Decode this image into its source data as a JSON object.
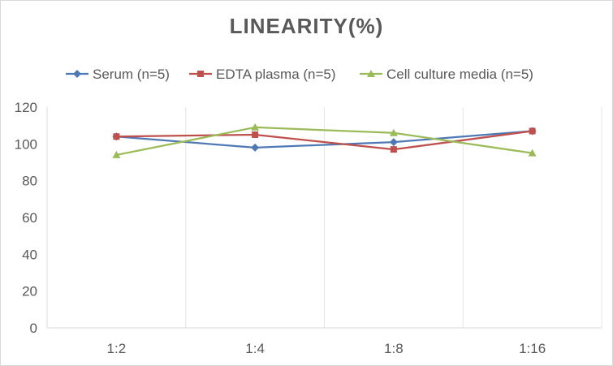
{
  "chart_data": {
    "type": "line",
    "title": "LINEARITY(%)",
    "xlabel": "",
    "ylabel": "",
    "categories": [
      "1:2",
      "1:4",
      "1:8",
      "1:16"
    ],
    "ylim": [
      0,
      120
    ],
    "yticks": [
      0,
      20,
      40,
      60,
      80,
      100,
      120
    ],
    "grid": "vertical",
    "legend_position": "top",
    "series": [
      {
        "name": "Serum (n=5)",
        "values": [
          104,
          98,
          101,
          107
        ],
        "color": "#4e79b4",
        "marker": "diamond"
      },
      {
        "name": "EDTA plasma (n=5)",
        "values": [
          104,
          105,
          97,
          107
        ],
        "color": "#c0504d",
        "marker": "square"
      },
      {
        "name": "Cell culture media (n=5)",
        "values": [
          94,
          109,
          106,
          95
        ],
        "color": "#9bbb59",
        "marker": "triangle"
      }
    ]
  }
}
